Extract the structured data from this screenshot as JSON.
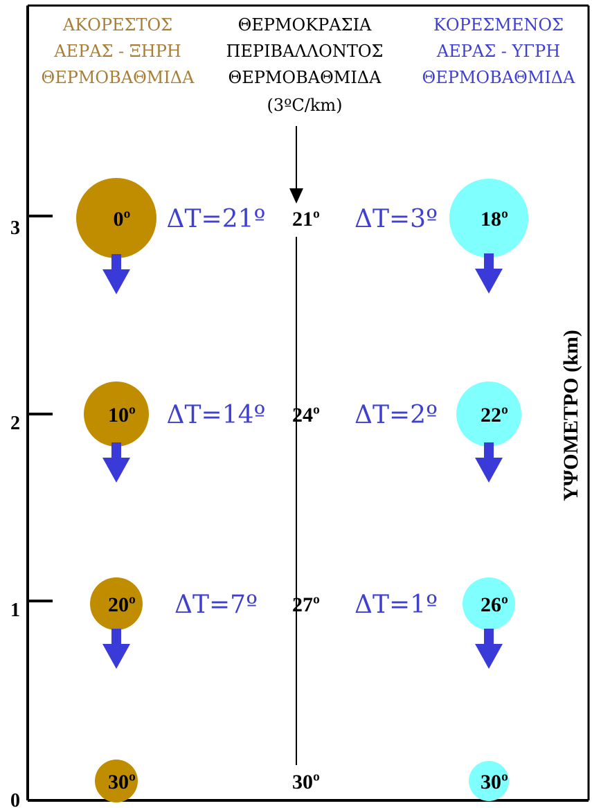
{
  "colors": {
    "dry_color": "#a87d35",
    "dry_fill": "#c08c00",
    "wet_color": "#4040d0",
    "wet_fill": "#80ffff",
    "arrow_fill": "#3a3ad8",
    "black": "#000000"
  },
  "headers": {
    "dry": [
      "ΑΚΟΡΕΣΤΟΣ",
      "ΑΕΡΑΣ - ΞΗΡΗ",
      "ΘΕΡΜΟΒΑΘΜΙΔΑ"
    ],
    "env": [
      "ΘΕΡΜΟΚΡΑΣΙΑ",
      "ΠΕΡΙΒΑΛΛΟΝΤΟΣ",
      "ΘΕΡΜΟΒΑΘΜΙΔΑ",
      "(3ºC/km)"
    ],
    "wet": [
      "ΚΟΡΕΣΜΕΝΟΣ",
      "ΑΕΡΑΣ - ΥΓΡΗ",
      "ΘΕΡΜΟΒΑΘΜΙΔΑ"
    ]
  },
  "axis": {
    "title": "ΥΨΟΜΕΤΡΟ (km)",
    "ticks": [
      "0",
      "1",
      "2",
      "3"
    ]
  },
  "levels": [
    {
      "altitude_km": 3,
      "dry_temp": "0º",
      "delta_dry": "ΔT=21º",
      "env_temp": "21º",
      "delta_wet": "ΔT=3º",
      "wet_temp": "18º"
    },
    {
      "altitude_km": 2,
      "dry_temp": "10º",
      "delta_dry": "ΔT=14º",
      "env_temp": "24º",
      "delta_wet": "ΔT=2º",
      "wet_temp": "22º"
    },
    {
      "altitude_km": 1,
      "dry_temp": "20º",
      "delta_dry": "ΔT=7º",
      "env_temp": "27º",
      "delta_wet": "ΔT=1º",
      "wet_temp": "26º"
    },
    {
      "altitude_km": 0,
      "dry_temp": "30º",
      "env_temp": "30º",
      "wet_temp": "30º"
    }
  ]
}
